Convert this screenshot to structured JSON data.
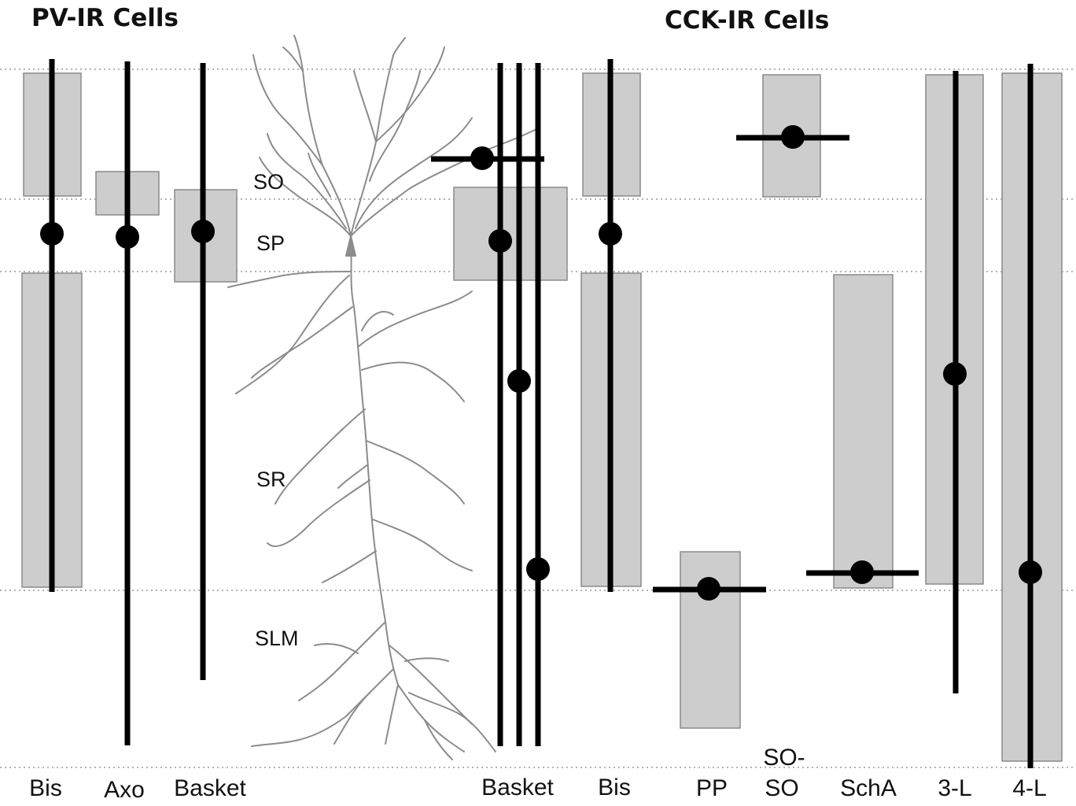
{
  "headings": {
    "pv": "PV-IR Cells",
    "cck": "CCK-IR Cells"
  },
  "layers": {
    "so": "SO",
    "sp": "SP",
    "sr": "SR",
    "slm": "SLM"
  },
  "pv_cells": {
    "bis": "Bis",
    "axo": "Axo",
    "basket": "Basket"
  },
  "cck_cells": {
    "basket": "Basket",
    "bis": "Bis",
    "pp": "PP",
    "so_so_line1": "SO-",
    "so_so_line2": "SO",
    "scha": "SchA",
    "three_l": "3-L",
    "four_l": "4-L"
  },
  "colors": {
    "field_fill": "#cdcdcd",
    "field_stroke": "#8a8a8a",
    "cell": "#000000",
    "neuron": "#8c8c8c",
    "boundary": "#9a9a9a"
  }
}
